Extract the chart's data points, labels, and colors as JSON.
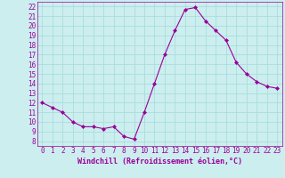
{
  "x": [
    0,
    1,
    2,
    3,
    4,
    5,
    6,
    7,
    8,
    9,
    10,
    11,
    12,
    13,
    14,
    15,
    16,
    17,
    18,
    19,
    20,
    21,
    22,
    23
  ],
  "y": [
    12,
    11.5,
    11,
    10,
    9.5,
    9.5,
    9.3,
    9.5,
    8.5,
    8.2,
    11,
    14,
    17,
    19.5,
    21.7,
    21.9,
    20.5,
    19.5,
    18.5,
    16.2,
    15,
    14.2,
    13.7,
    13.5
  ],
  "line_color": "#990099",
  "marker": "D",
  "marker_size": 2,
  "linewidth": 0.8,
  "bg_color": "#cceeee",
  "grid_color": "#aadddd",
  "xlabel": "Windchill (Refroidissement éolien,°C)",
  "xlabel_fontsize": 6,
  "tick_fontsize": 5.5,
  "xlim": [
    -0.5,
    23.5
  ],
  "ylim": [
    7.5,
    22.5
  ],
  "yticks": [
    8,
    9,
    10,
    11,
    12,
    13,
    14,
    15,
    16,
    17,
    18,
    19,
    20,
    21,
    22
  ],
  "xticks": [
    0,
    1,
    2,
    3,
    4,
    5,
    6,
    7,
    8,
    9,
    10,
    11,
    12,
    13,
    14,
    15,
    16,
    17,
    18,
    19,
    20,
    21,
    22,
    23
  ]
}
